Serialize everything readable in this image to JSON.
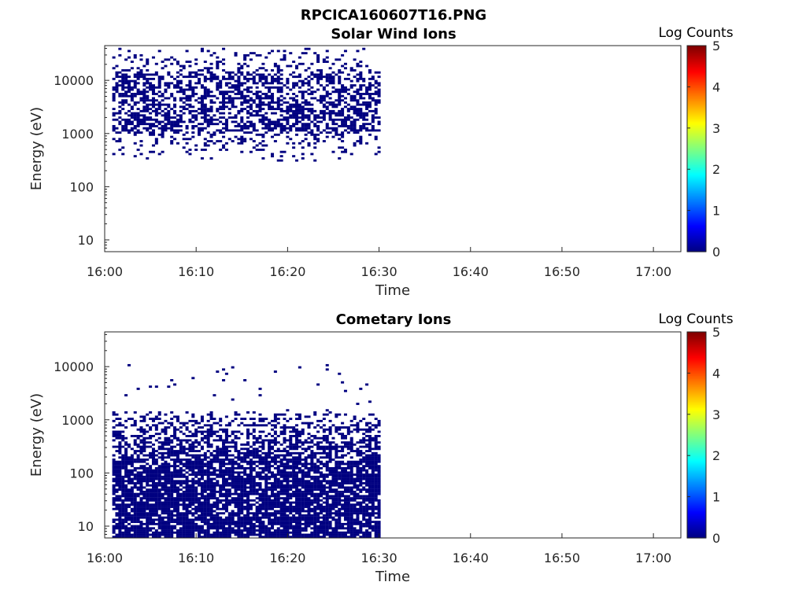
{
  "figure_title": "RPCICA160607T16.PNG",
  "chart_data": [
    {
      "type": "heatmap",
      "title": "Solar Wind Ions",
      "xlabel": "Time",
      "ylabel": "Energy (eV)",
      "y_scale": "log",
      "xlim": [
        "16:00",
        "17:03"
      ],
      "ylim": [
        6,
        45000
      ],
      "x_ticks": [
        "16:00",
        "16:10",
        "16:20",
        "16:30",
        "16:40",
        "16:50",
        "17:00"
      ],
      "y_ticks": [
        "10",
        "100",
        "1000",
        "10000"
      ],
      "colorbar": {
        "label": "Log Counts",
        "ticks": [
          "0",
          "1",
          "2",
          "3",
          "4",
          "5"
        ],
        "range": [
          0,
          5
        ],
        "colormap": "jet"
      },
      "data_time_range": [
        "16:01",
        "16:30"
      ],
      "data_energy_range_eV": [
        300,
        40000
      ],
      "typical_log_counts": 0,
      "density": 0.5,
      "core_energy_range_eV": [
        1000,
        15000
      ]
    },
    {
      "type": "heatmap",
      "title": "Cometary Ions",
      "xlabel": "Time",
      "ylabel": "Energy (eV)",
      "y_scale": "log",
      "xlim": [
        "16:00",
        "17:03"
      ],
      "ylim": [
        6,
        45000
      ],
      "x_ticks": [
        "16:00",
        "16:10",
        "16:20",
        "16:30",
        "16:40",
        "16:50",
        "17:00"
      ],
      "y_ticks": [
        "10",
        "100",
        "1000",
        "10000"
      ],
      "colorbar": {
        "label": "Log Counts",
        "ticks": [
          "0",
          "1",
          "2",
          "3",
          "4",
          "5"
        ],
        "range": [
          0,
          5
        ],
        "colormap": "jet"
      },
      "data_time_range": [
        "16:01",
        "16:30"
      ],
      "data_energy_range_eV": [
        6,
        1500
      ],
      "sparse_max_energy_eV": 11000,
      "typical_log_counts": 0,
      "density_profile": "dense below 100 eV, thinning toward 1500 eV"
    }
  ]
}
